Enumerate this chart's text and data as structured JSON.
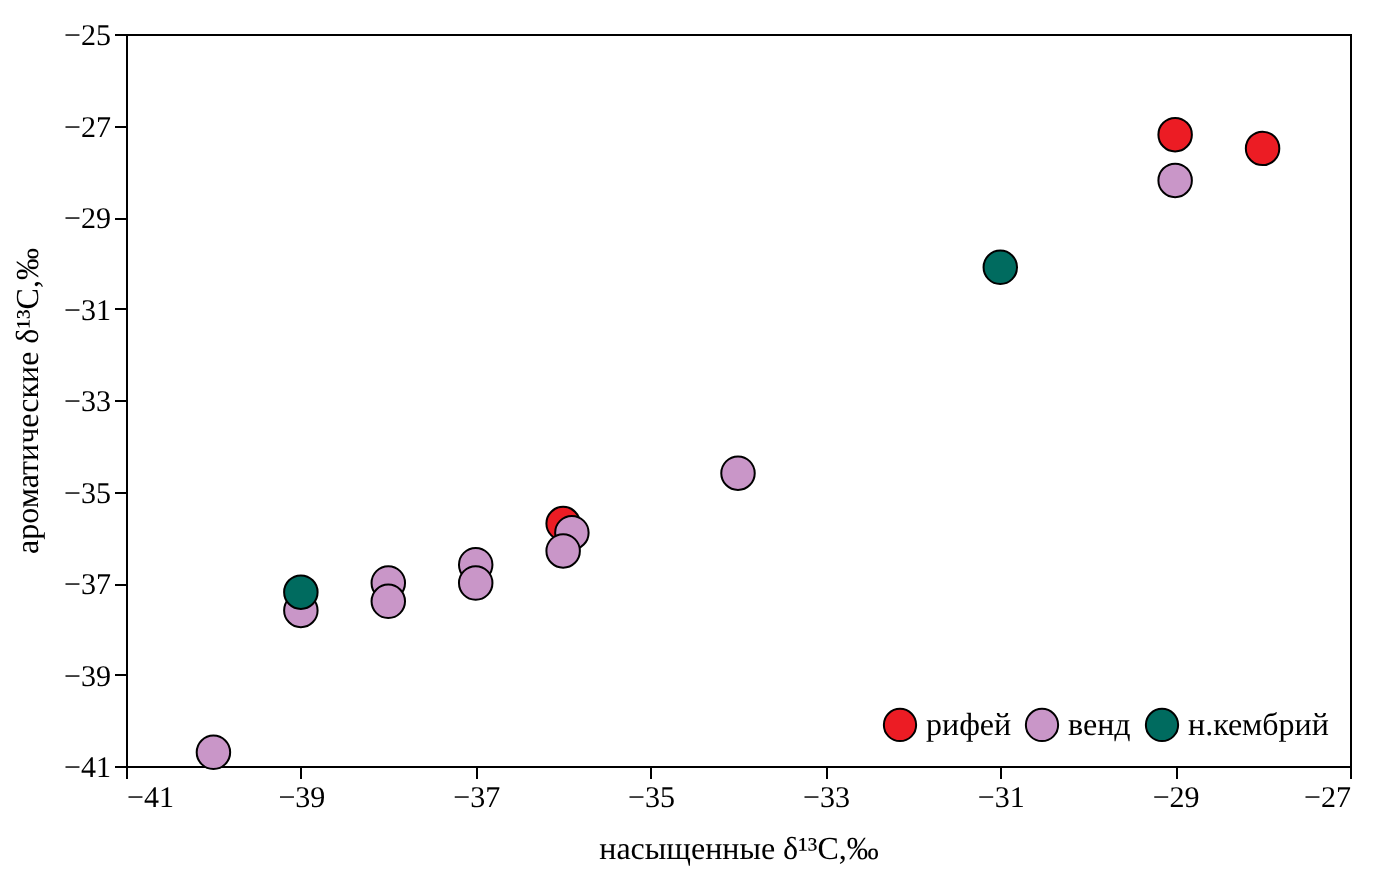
{
  "chart_data": {
    "type": "scatter",
    "xlabel": "насыщенные δ¹³C,‰",
    "ylabel": "ароматические δ¹³C,‰",
    "xlim": [
      -41,
      -27
    ],
    "xticks": [
      -41,
      -39,
      -37,
      -35,
      -33,
      -31,
      -29,
      -27
    ],
    "ylim": [
      -41,
      -25
    ],
    "yticks": [
      -41,
      -39,
      -37,
      -35,
      -33,
      -31,
      -29,
      -27,
      -25
    ],
    "grid": false,
    "legend": "bottom right",
    "marker": "circle",
    "series": [
      {
        "name": "рифей",
        "color": "#ec1c24",
        "x": [
          -29,
          -28,
          -36
        ],
        "values": [
          -27.2,
          -27.5,
          -35.7
        ]
      },
      {
        "name": "венд",
        "color": "#c996c8",
        "x": [
          -29,
          -34,
          -35.9,
          -36,
          -37,
          -37,
          -38,
          -38,
          -39,
          -40
        ],
        "values": [
          -28.2,
          -34.6,
          -35.9,
          -36.3,
          -36.6,
          -37.0,
          -37.0,
          -37.4,
          -37.6,
          -40.7
        ]
      },
      {
        "name": "н.кембрий",
        "color": "#006b5f",
        "x": [
          -39,
          -31
        ],
        "values": [
          -37.2,
          -30.1
        ]
      }
    ]
  }
}
